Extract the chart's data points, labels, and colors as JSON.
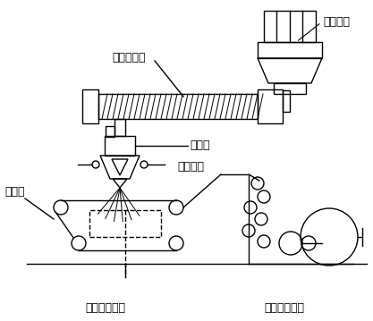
{
  "bg_color": "#ffffff",
  "line_color": "#000000",
  "labels": {
    "feed": "喂料装置",
    "screw": "螺杆挤出机",
    "pump": "计量泵",
    "die": "熔喷模头",
    "web": "成网帘",
    "suction": "网下抽吸装置",
    "winding": "切边卷绕装置"
  },
  "font_size": 9,
  "figsize": [
    4.17,
    3.59
  ],
  "dpi": 100
}
